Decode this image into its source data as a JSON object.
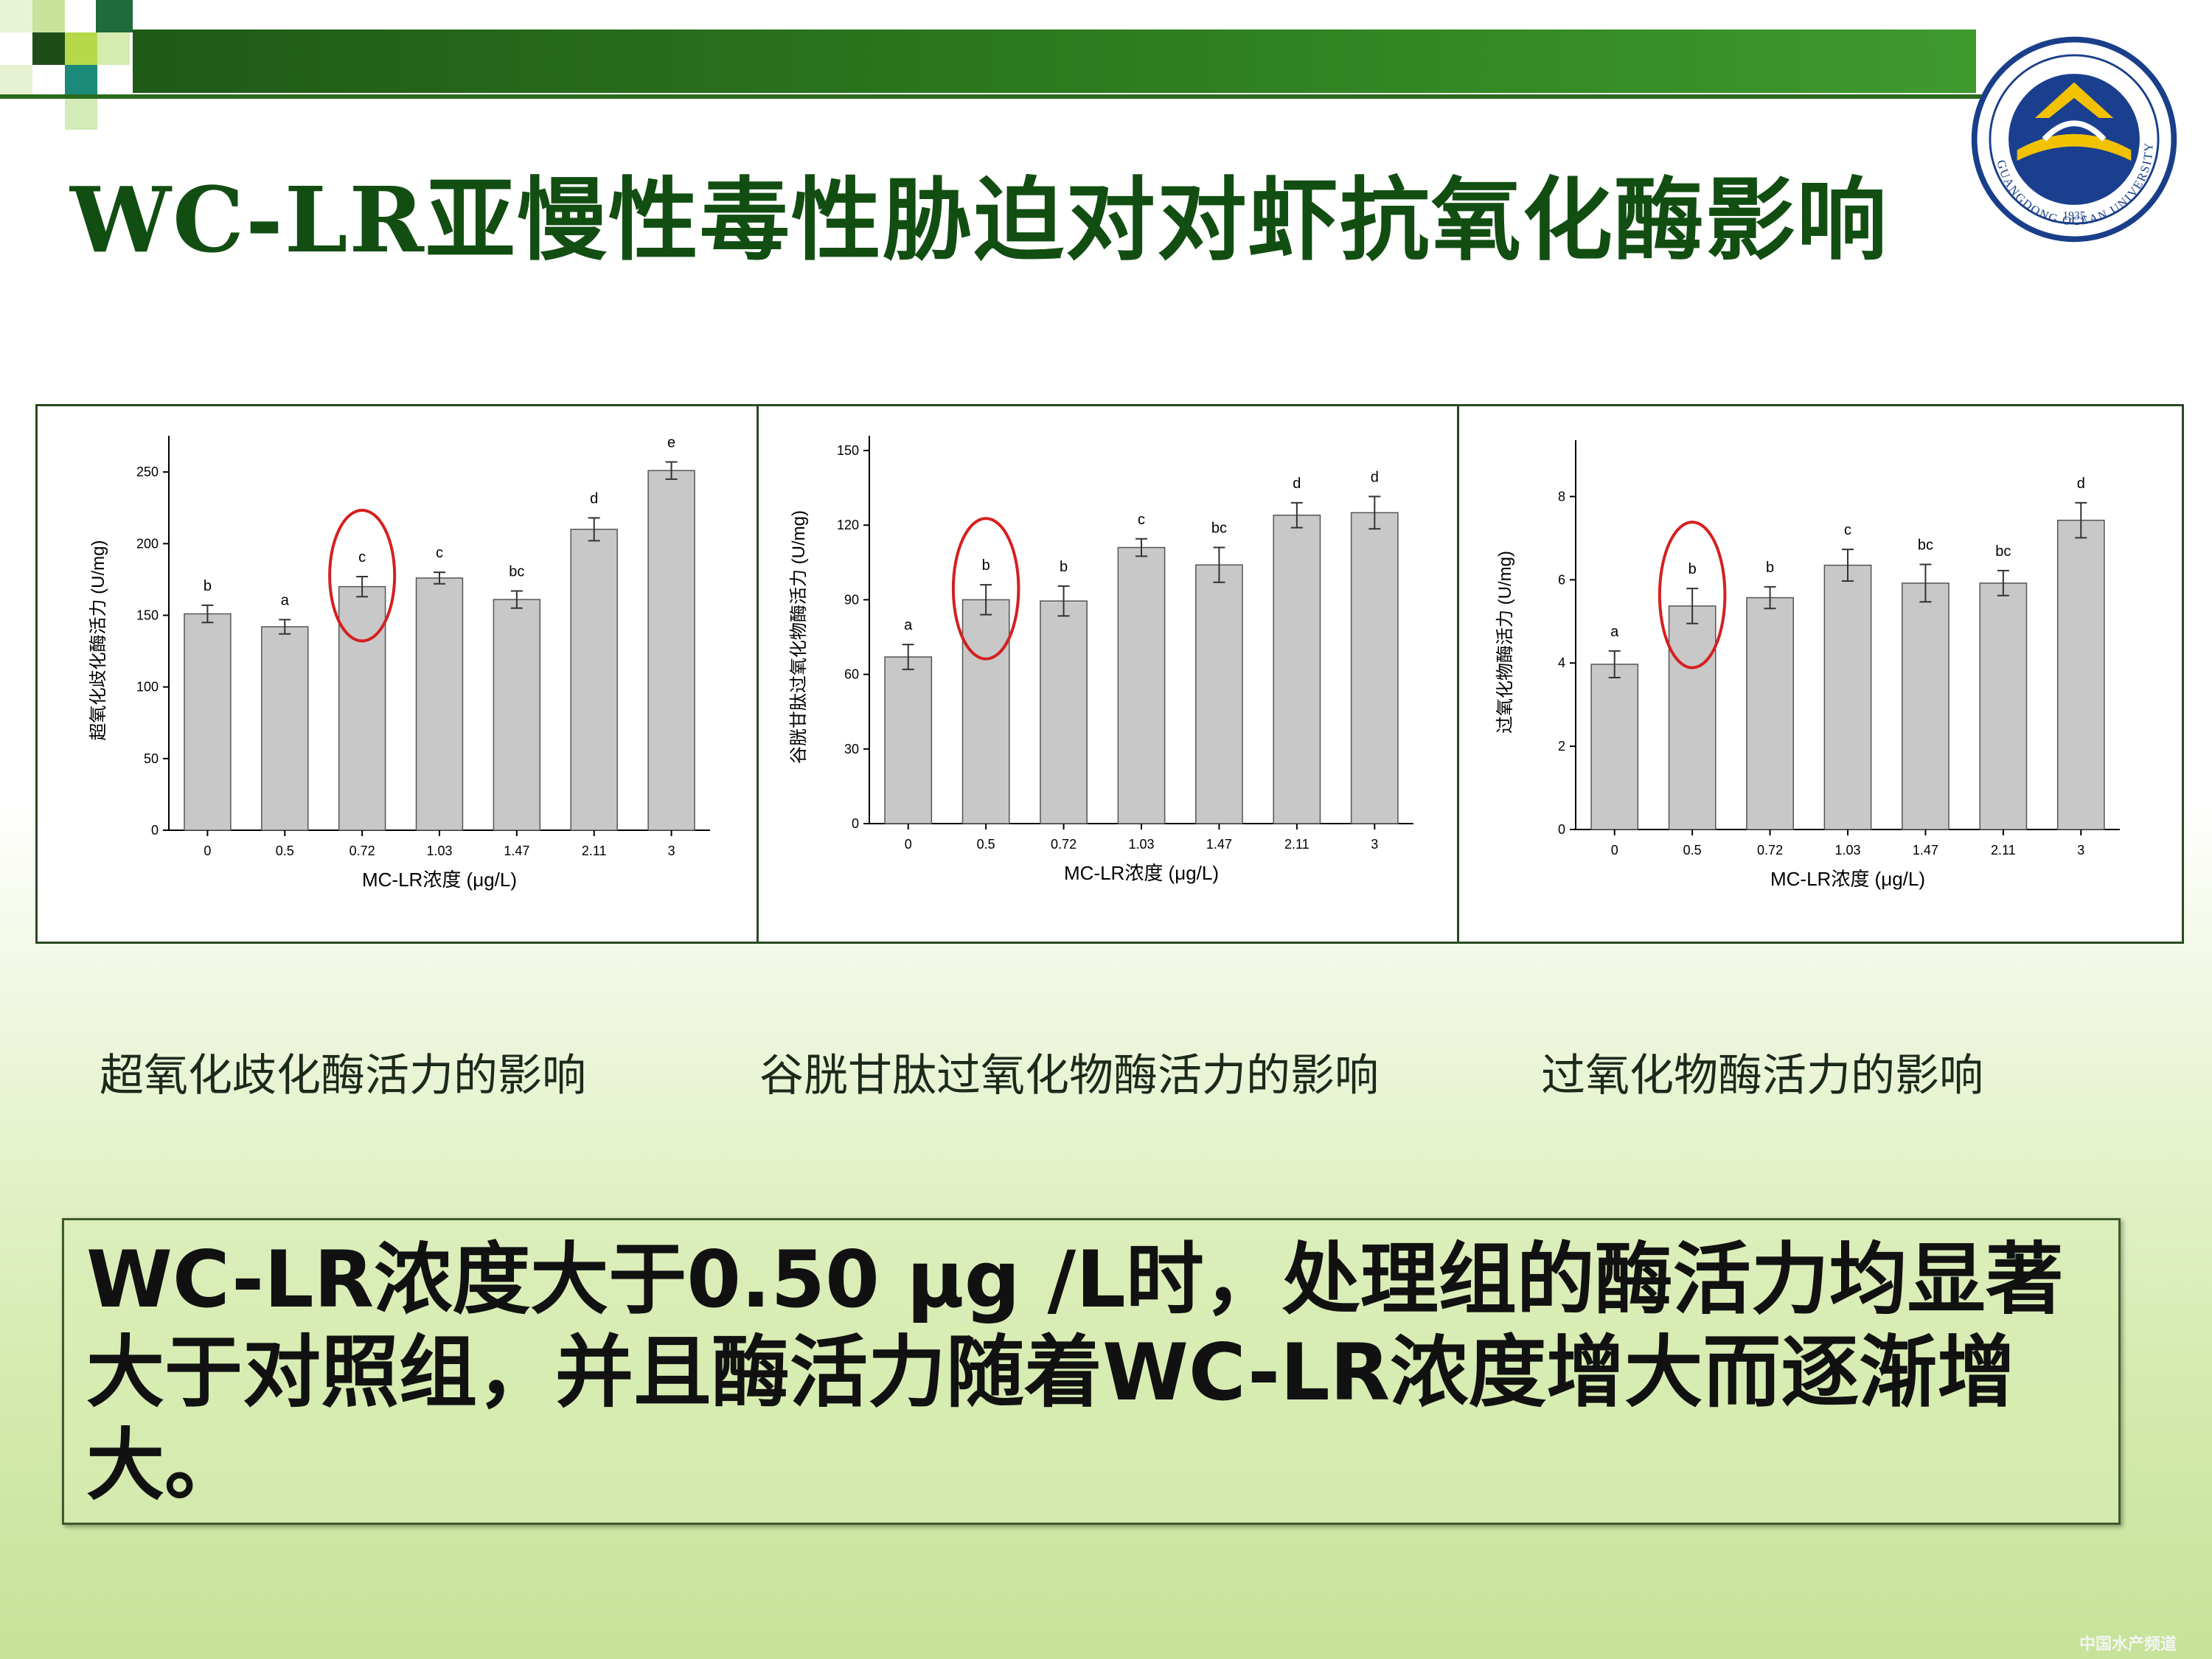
{
  "slide": {
    "title": "WC-LR亚慢性毒性胁迫对对虾抗氧化酶影响",
    "logo_text": "GUANGDONG OCEAN UNIVERSITY",
    "logo_year": "1935",
    "conclusion": "WC-LR浓度大于0.50 μg /L时，处理组的酶活力均显著大于对照组，并且酶活力随着WC-LR浓度增大而逐渐增大。",
    "watermark": "中国水产频道",
    "colors": {
      "title": "#124e12",
      "topbar": "#2e7d20",
      "bar": "#c8c8c8",
      "circle": "#d42020"
    }
  },
  "captions": [
    "超氧化歧化酶活力的影响",
    "谷胱甘肽过氧化物酶活力的影响",
    "过氧化物酶活力的影响"
  ],
  "chart_data": [
    {
      "type": "bar",
      "categories": [
        "0",
        "0.5",
        "0.72",
        "1.03",
        "1.47",
        "2.11",
        "3"
      ],
      "values": [
        151,
        142,
        170,
        176,
        161,
        210,
        251
      ],
      "errors": [
        6,
        5,
        7,
        4,
        6,
        8,
        6
      ],
      "letters": [
        "b",
        "a",
        "c",
        "c",
        "bc",
        "d",
        "e"
      ],
      "xlabel": "MC-LR浓度 (μg/L)",
      "ylabel": "超氧化歧化酶活力 (U/mg)",
      "ylim": [
        0,
        265
      ],
      "yticks": [
        0,
        50,
        100,
        150,
        200,
        250
      ],
      "highlight_index": 2
    },
    {
      "type": "bar",
      "categories": [
        "0",
        "0.5",
        "0.72",
        "1.03",
        "1.47",
        "2.11",
        "3"
      ],
      "values": [
        67,
        90,
        89.5,
        111,
        104,
        124,
        125
      ],
      "errors": [
        5,
        6,
        6,
        3.5,
        7,
        5,
        6.5
      ],
      "letters": [
        "a",
        "b",
        "b",
        "c",
        "bc",
        "d",
        "d"
      ],
      "xlabel": "MC-LR浓度 (μg/L)",
      "ylabel": "谷胱甘肽过氧化物酶活力 (U/mg)",
      "ylim": [
        0,
        150
      ],
      "yticks": [
        0,
        30,
        60,
        90,
        120,
        150
      ],
      "highlight_index": 1
    },
    {
      "type": "bar",
      "categories": [
        "0",
        "0.5",
        "0.72",
        "1.03",
        "1.47",
        "2.11",
        "3"
      ],
      "values": [
        3.97,
        5.37,
        5.57,
        6.35,
        5.92,
        5.92,
        7.43
      ],
      "errors": [
        0.32,
        0.42,
        0.26,
        0.38,
        0.45,
        0.3,
        0.42
      ],
      "letters": [
        "a",
        "b",
        "b",
        "c",
        "bc",
        "bc",
        "d"
      ],
      "xlabel": "MC-LR浓度 (μg/L)",
      "ylabel": "过氧化物酶活力 (U/mg)",
      "ylim": [
        0,
        9
      ],
      "yticks": [
        0,
        2,
        4,
        6,
        8
      ],
      "highlight_index": 1
    }
  ]
}
